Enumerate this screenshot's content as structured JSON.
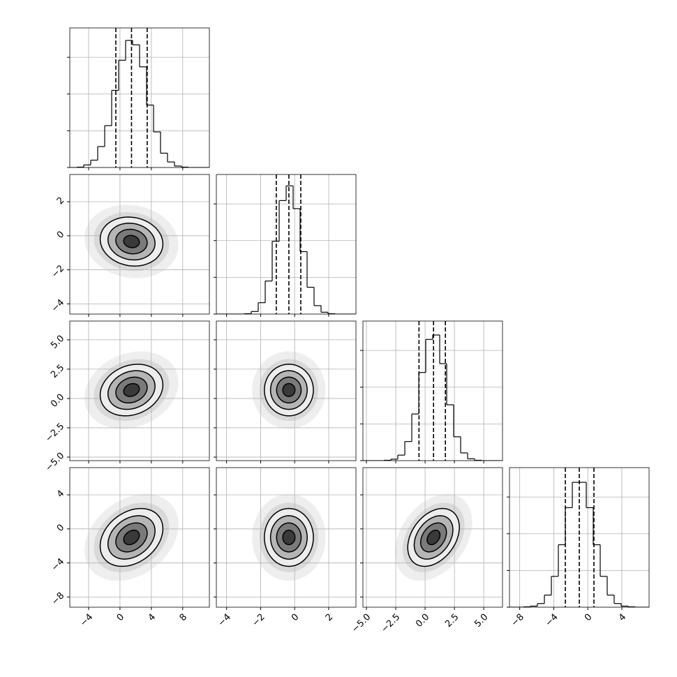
{
  "chart_data": {
    "type": "corner",
    "grid": true,
    "parameters": [
      {
        "lim": [
          -6.4,
          11.4
        ],
        "ticks": [
          {
            "value": -4,
            "label": "−4"
          },
          0,
          4,
          8
        ]
      },
      {
        "lim": [
          -4.6,
          3.6
        ],
        "ticks": [
          {
            "value": -4,
            "label": "−4"
          },
          {
            "value": -2,
            "label": "−2"
          },
          0,
          2
        ]
      },
      {
        "lim": [
          -5.3,
          6.6
        ],
        "ticks": [
          {
            "value": -5,
            "label": "−5.0"
          },
          {
            "value": -2.5,
            "label": "−2.5"
          },
          {
            "value": 0,
            "label": "0.0"
          },
          2.5,
          {
            "value": 5,
            "label": "5.0"
          }
        ]
      },
      {
        "lim": [
          -9.2,
          7.2
        ],
        "ticks": [
          {
            "value": -8,
            "label": "−8"
          },
          {
            "value": -4,
            "label": "−4"
          },
          0,
          4
        ]
      }
    ],
    "hist_ylim": [
      0,
      3.8
    ],
    "hist_yticks": [
      0,
      1,
      2,
      3
    ],
    "histograms": [
      {
        "bins": [
          -6.4,
          -5.51,
          -4.62,
          -3.73,
          -2.84,
          -1.95,
          -1.06,
          -0.17,
          0.72,
          1.61,
          2.5,
          3.39,
          4.28,
          5.17,
          6.06,
          6.95,
          7.84,
          8.73,
          9.62,
          10.51,
          11.4
        ],
        "values": [
          0,
          0.01,
          0.07,
          0.2,
          0.57,
          1.14,
          2.1,
          2.92,
          3.46,
          3.34,
          2.74,
          1.7,
          0.97,
          0.39,
          0.15,
          0.04,
          0.01,
          0,
          0,
          0
        ],
        "quantiles": [
          -0.53,
          1.47,
          3.47
        ]
      },
      {
        "bins": [
          -4.6,
          -4.19,
          -3.78,
          -3.37,
          -2.96,
          -2.55,
          -2.14,
          -1.73,
          -1.32,
          -0.91,
          -0.5,
          -0.09,
          0.32,
          0.73,
          1.14,
          1.55,
          1.96,
          2.37,
          2.78,
          3.19,
          3.6
        ],
        "values": [
          0,
          0,
          0,
          0,
          0.01,
          0.07,
          0.31,
          0.9,
          1.98,
          3.09,
          3.49,
          2.87,
          1.7,
          0.73,
          0.23,
          0.05,
          0.01,
          0,
          0,
          0
        ],
        "quantiles": [
          -1.08,
          -0.34,
          0.36
        ]
      },
      {
        "bins": [
          -5.3,
          -4.705,
          -4.11,
          -3.515,
          -2.92,
          -2.325,
          -1.73,
          -1.135,
          -0.54,
          0.055,
          0.65,
          1.245,
          1.84,
          2.435,
          3.03,
          3.625,
          4.22,
          4.815,
          5.41,
          6.005,
          6.6
        ],
        "values": [
          0,
          0,
          0,
          0.01,
          0.04,
          0.15,
          0.52,
          1.27,
          2.4,
          3.3,
          3.42,
          2.64,
          1.52,
          0.65,
          0.21,
          0.05,
          0.01,
          0,
          0,
          0
        ],
        "quantiles": [
          -0.52,
          0.72,
          1.73
        ]
      },
      {
        "bins": [
          -9.2,
          -8.38,
          -7.56,
          -6.74,
          -5.92,
          -5.1,
          -4.28,
          -3.46,
          -2.64,
          -1.82,
          -1,
          -0.18,
          0.64,
          1.46,
          2.28,
          3.1,
          3.92,
          4.74,
          5.56,
          6.38,
          7.2
        ],
        "values": [
          0,
          0,
          0.01,
          0.03,
          0.1,
          0.33,
          0.84,
          1.7,
          2.71,
          3.4,
          3.4,
          2.71,
          1.7,
          0.84,
          0.33,
          0.1,
          0.03,
          0.01,
          0,
          0
        ],
        "quantiles": [
          -2.64,
          -1.0,
          0.72
        ]
      }
    ],
    "levels": [
      2,
      1.5,
      1,
      0.5
    ],
    "panels": [
      {
        "center": [
          1.47,
          -0.34
        ],
        "sigma": [
          2.0,
          0.72
        ],
        "corr": -0.1
      },
      {
        "center": [
          1.47,
          0.72
        ],
        "sigma": [
          2.0,
          1.1
        ],
        "corr": 0.2
      },
      {
        "center": [
          -0.34,
          0.72
        ],
        "sigma": [
          0.72,
          1.1
        ],
        "corr": 0.0
      },
      {
        "center": [
          1.47,
          -1.0
        ],
        "sigma": [
          2.0,
          1.7
        ],
        "corr": 0.3
      },
      {
        "center": [
          -0.34,
          -1.0
        ],
        "sigma": [
          0.72,
          1.7
        ],
        "corr": 0.0
      },
      {
        "center": [
          0.72,
          -1.0
        ],
        "sigma": [
          1.1,
          1.7
        ],
        "corr": 0.35
      }
    ]
  }
}
